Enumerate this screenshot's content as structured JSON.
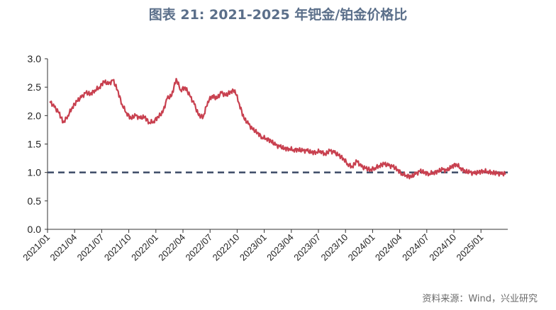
{
  "title": "图表 21: 2021-2025 年钯金/铂金价格比",
  "source": "资料来源：Wind，兴业研究",
  "colors": {
    "title": "#5b6f8a",
    "line": "#c8404f",
    "reference": "#3c4a66",
    "axis": "#333333"
  },
  "chart_data": {
    "type": "line",
    "title": "图表 21: 2021-2025 年钯金/铂金价格比",
    "xlabel": "",
    "ylabel": "",
    "ylim": [
      0,
      3.0
    ],
    "yticks": [
      "3.0",
      "2.5",
      "2.0",
      "1.5",
      "1.0",
      "0.5",
      "0.0"
    ],
    "xticks": [
      "2021/01",
      "2021/04",
      "2021/07",
      "2021/10",
      "2022/01",
      "2022/04",
      "2022/07",
      "2022/10",
      "2023/01",
      "2023/04",
      "2023/07",
      "2023/10",
      "2024/01",
      "2024/04",
      "2024/07",
      "2024/10",
      "2025/01"
    ],
    "grid": false,
    "legend": "none",
    "reference_line": {
      "y": 1.0,
      "style": "dashed"
    },
    "series": [
      {
        "x": [
          "2021/01",
          "2021/01",
          "2021/02",
          "2021/02",
          "2021/03",
          "2021/03",
          "2021/04",
          "2021/04",
          "2021/05",
          "2021/05",
          "2021/06",
          "2021/06",
          "2021/07",
          "2021/07",
          "2021/08",
          "2021/08",
          "2021/09",
          "2021/09",
          "2021/10",
          "2021/10",
          "2021/11",
          "2021/11",
          "2021/12",
          "2021/12",
          "2022/01",
          "2022/01",
          "2022/02",
          "2022/02",
          "2022/03",
          "2022/03",
          "2022/04",
          "2022/04",
          "2022/05",
          "2022/05",
          "2022/06",
          "2022/06",
          "2022/07",
          "2022/07",
          "2022/08",
          "2022/08",
          "2022/09",
          "2022/09",
          "2022/10",
          "2022/10",
          "2022/11",
          "2022/11",
          "2022/12",
          "2022/12",
          "2023/01",
          "2023/01",
          "2023/02",
          "2023/02",
          "2023/03",
          "2023/03",
          "2023/04",
          "2023/04",
          "2023/05",
          "2023/05",
          "2023/06",
          "2023/06",
          "2023/07",
          "2023/07",
          "2023/08",
          "2023/08",
          "2023/09",
          "2023/09",
          "2023/10",
          "2023/10",
          "2023/11",
          "2023/11",
          "2023/12",
          "2023/12",
          "2024/01",
          "2024/01",
          "2024/02",
          "2024/02",
          "2024/03",
          "2024/03",
          "2024/04",
          "2024/04",
          "2024/05",
          "2024/05",
          "2024/06",
          "2024/06",
          "2024/07",
          "2024/07",
          "2024/08",
          "2024/08",
          "2024/09",
          "2024/09",
          "2024/10",
          "2024/10",
          "2024/11",
          "2024/11",
          "2024/12",
          "2024/12",
          "2025/01",
          "2025/01",
          "2025/02",
          "2025/02",
          "2025/03",
          "2025/03"
        ],
        "values": [
          2.25,
          2.15,
          2.05,
          1.88,
          2.0,
          2.15,
          2.25,
          2.32,
          2.4,
          2.38,
          2.45,
          2.5,
          2.6,
          2.55,
          2.62,
          2.45,
          2.2,
          2.05,
          1.95,
          2.0,
          1.95,
          1.98,
          1.88,
          1.9,
          1.98,
          2.05,
          2.3,
          2.35,
          2.65,
          2.45,
          2.5,
          2.35,
          2.2,
          2.0,
          1.98,
          2.25,
          2.35,
          2.3,
          2.4,
          2.35,
          2.42,
          2.45,
          2.2,
          1.95,
          1.85,
          1.75,
          1.7,
          1.62,
          1.6,
          1.55,
          1.48,
          1.45,
          1.42,
          1.42,
          1.4,
          1.4,
          1.38,
          1.38,
          1.35,
          1.36,
          1.38,
          1.32,
          1.38,
          1.35,
          1.3,
          1.25,
          1.15,
          1.1,
          1.2,
          1.1,
          1.07,
          1.05,
          1.08,
          1.12,
          1.15,
          1.12,
          1.1,
          1.05,
          0.98,
          0.95,
          0.92,
          0.97,
          1.02,
          1.0,
          0.98,
          1.0,
          1.02,
          1.05,
          1.03,
          1.1,
          1.15,
          1.08,
          1.02,
          1.0,
          0.98,
          1.0,
          1.03,
          1.02,
          1.0,
          0.98,
          0.97,
          0.98
        ]
      }
    ]
  }
}
